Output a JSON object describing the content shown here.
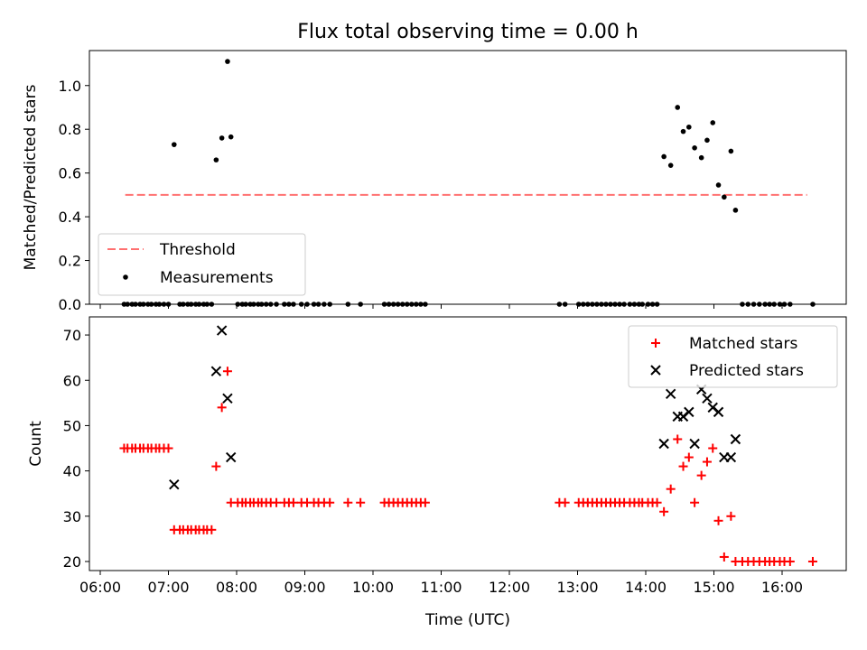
{
  "figure": {
    "title": "Flux total observing time = 0.00 h",
    "xlabel": "Time (UTC)"
  },
  "colors": {
    "threshold": "#ff7070",
    "measurements": "#000000",
    "matched": "#ff0000",
    "predicted": "#000000"
  },
  "chart_data": [
    {
      "type": "scatter",
      "ylabel": "Matched/Predicted stars",
      "xlim": [
        "06:00",
        "17:00"
      ],
      "ylim": [
        0,
        1.16
      ],
      "grid": false,
      "legend_placement": "lower-left",
      "x_ticks": [
        "06:00",
        "07:00",
        "08:00",
        "09:00",
        "10:00",
        "11:00",
        "12:00",
        "13:00",
        "14:00",
        "15:00",
        "16:00"
      ],
      "y_ticks": [
        "0.0",
        "0.2",
        "0.4",
        "0.6",
        "0.8",
        "1.0"
      ],
      "series": [
        {
          "name": "Threshold",
          "type": "line",
          "x": [
            "06:22",
            "16:22"
          ],
          "y": [
            0.5,
            0.5
          ]
        },
        {
          "name": "Measurements",
          "type": "scatter",
          "x": [
            "06:21",
            "06:24",
            "06:28",
            "06:31",
            "06:35",
            "06:38",
            "06:42",
            "06:45",
            "06:49",
            "06:52",
            "06:56",
            "07:00",
            "07:05",
            "07:10",
            "07:13",
            "07:17",
            "07:20",
            "07:24",
            "07:27",
            "07:31",
            "07:34",
            "07:38",
            "07:42",
            "07:47",
            "07:52",
            "07:55",
            "08:01",
            "08:05",
            "08:08",
            "08:12",
            "08:15",
            "08:19",
            "08:22",
            "08:26",
            "08:30",
            "08:35",
            "08:42",
            "08:46",
            "08:50",
            "08:57",
            "09:02",
            "09:08",
            "09:12",
            "09:17",
            "09:22",
            "09:38",
            "09:49",
            "10:10",
            "10:14",
            "10:18",
            "10:22",
            "10:26",
            "10:30",
            "10:34",
            "10:38",
            "10:42",
            "10:46",
            "12:44",
            "12:49",
            "13:01",
            "13:05",
            "13:09",
            "13:13",
            "13:17",
            "13:21",
            "13:25",
            "13:29",
            "13:33",
            "13:37",
            "13:41",
            "13:46",
            "13:50",
            "13:54",
            "13:57",
            "14:02",
            "14:06",
            "14:10",
            "14:16",
            "14:22",
            "14:28",
            "14:33",
            "14:38",
            "14:43",
            "14:49",
            "14:54",
            "14:59",
            "15:04",
            "15:09",
            "15:15",
            "15:19",
            "15:25",
            "15:30",
            "15:35",
            "15:40",
            "15:45",
            "15:49",
            "15:53",
            "15:58",
            "16:02",
            "16:07",
            "16:27"
          ],
          "y": [
            0,
            0,
            0,
            0,
            0,
            0,
            0,
            0,
            0,
            0,
            0,
            0,
            0.73,
            0,
            0,
            0,
            0,
            0,
            0,
            0,
            0,
            0,
            0.66,
            0.76,
            1.11,
            0.765,
            0,
            0,
            0,
            0,
            0,
            0,
            0,
            0,
            0,
            0,
            0,
            0,
            0,
            0,
            0,
            0,
            0,
            0,
            0,
            0,
            0,
            0,
            0,
            0,
            0,
            0,
            0,
            0,
            0,
            0,
            0,
            0,
            0,
            0,
            0,
            0,
            0,
            0,
            0,
            0,
            0,
            0,
            0,
            0,
            0,
            0,
            0,
            0,
            0,
            0,
            0,
            0.675,
            0.635,
            0.9,
            0.79,
            0.81,
            0.715,
            0.67,
            0.75,
            0.83,
            0.545,
            0.49,
            0.7,
            0.43,
            0,
            0,
            0,
            0,
            0,
            0,
            0,
            0,
            0,
            0,
            0
          ]
        }
      ]
    },
    {
      "type": "scatter",
      "ylabel": "Count",
      "xlim": [
        "06:00",
        "17:00"
      ],
      "ylim": [
        18,
        74
      ],
      "grid": false,
      "legend_placement": "top-right",
      "x_ticks": [
        "06:00",
        "07:00",
        "08:00",
        "09:00",
        "10:00",
        "11:00",
        "12:00",
        "13:00",
        "14:00",
        "15:00",
        "16:00"
      ],
      "y_ticks": [
        "20",
        "30",
        "40",
        "50",
        "60",
        "70"
      ],
      "series": [
        {
          "name": "Matched stars",
          "marker": "plus",
          "x": [
            "06:21",
            "06:24",
            "06:28",
            "06:31",
            "06:35",
            "06:38",
            "06:42",
            "06:45",
            "06:49",
            "06:52",
            "06:56",
            "07:00",
            "07:05",
            "07:10",
            "07:13",
            "07:17",
            "07:20",
            "07:24",
            "07:27",
            "07:31",
            "07:34",
            "07:38",
            "07:42",
            "07:47",
            "07:52",
            "07:55",
            "08:01",
            "08:05",
            "08:08",
            "08:12",
            "08:15",
            "08:19",
            "08:22",
            "08:26",
            "08:30",
            "08:35",
            "08:42",
            "08:46",
            "08:50",
            "08:57",
            "09:02",
            "09:08",
            "09:12",
            "09:17",
            "09:22",
            "09:38",
            "09:49",
            "10:10",
            "10:14",
            "10:18",
            "10:22",
            "10:26",
            "10:30",
            "10:34",
            "10:38",
            "10:42",
            "10:46",
            "12:44",
            "12:49",
            "13:01",
            "13:05",
            "13:09",
            "13:13",
            "13:17",
            "13:21",
            "13:25",
            "13:29",
            "13:33",
            "13:37",
            "13:41",
            "13:46",
            "13:50",
            "13:54",
            "13:57",
            "14:02",
            "14:06",
            "14:10",
            "14:16",
            "14:22",
            "14:28",
            "14:33",
            "14:38",
            "14:43",
            "14:49",
            "14:54",
            "14:59",
            "15:04",
            "15:09",
            "15:15",
            "15:19",
            "15:25",
            "15:30",
            "15:35",
            "15:40",
            "15:45",
            "15:49",
            "15:53",
            "15:58",
            "16:02",
            "16:07",
            "16:27"
          ],
          "y": [
            45,
            45,
            45,
            45,
            45,
            45,
            45,
            45,
            45,
            45,
            45,
            45,
            27,
            27,
            27,
            27,
            27,
            27,
            27,
            27,
            27,
            27,
            41,
            54,
            62,
            33,
            33,
            33,
            33,
            33,
            33,
            33,
            33,
            33,
            33,
            33,
            33,
            33,
            33,
            33,
            33,
            33,
            33,
            33,
            33,
            33,
            33,
            33,
            33,
            33,
            33,
            33,
            33,
            33,
            33,
            33,
            33,
            33,
            33,
            33,
            33,
            33,
            33,
            33,
            33,
            33,
            33,
            33,
            33,
            33,
            33,
            33,
            33,
            33,
            33,
            33,
            33,
            31,
            36,
            47,
            41,
            43,
            33,
            39,
            42,
            45,
            29,
            21,
            30,
            20,
            20,
            20,
            20,
            20,
            20,
            20,
            20,
            20,
            20,
            20,
            20
          ]
        },
        {
          "name": "Predicted stars",
          "marker": "x",
          "x": [
            "07:05",
            "07:42",
            "07:47",
            "07:52",
            "07:55",
            "14:16",
            "14:22",
            "14:28",
            "14:33",
            "14:38",
            "14:43",
            "14:49",
            "14:54",
            "14:59",
            "15:04",
            "15:09",
            "15:15",
            "15:19"
          ],
          "y": [
            37,
            62,
            71,
            56,
            43,
            46,
            57,
            52,
            52,
            53,
            46,
            58,
            56,
            54,
            53,
            43,
            43,
            47
          ]
        }
      ]
    }
  ]
}
